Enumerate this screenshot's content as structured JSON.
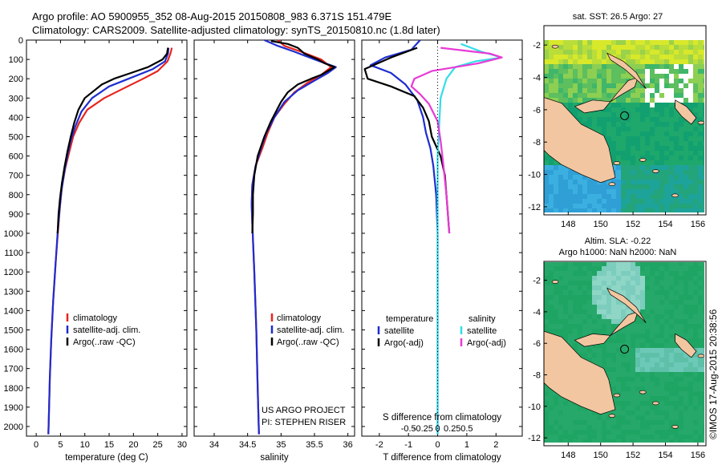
{
  "header": {
    "line1": "Argo profile: AO 5900955_352 08-Aug-2015 20150808_983 6.371S 151.479E",
    "line2": "Climatology: CARS2009. Satellite-adjusted climatology: synTS_20150810.nc (1.8d later)"
  },
  "side_labels": {
    "sst": "sat. SST: 26.5 Argo: 27",
    "sla1": "Altim. SLA: -0.22",
    "sla2": "Argo h1000: NaN h2000: NaN",
    "copyright": "©IMOS 17-Aug-2015 20:38:56"
  },
  "colors": {
    "climatology": "#e8241c",
    "satellite": "#1f2dcf",
    "argo": "#000000",
    "sat_salinity": "#33dde8",
    "argo_salinity": "#e83ad6",
    "land": "#f2c6a0"
  },
  "chart_data": [
    {
      "type": "line",
      "xlabel": "temperature (deg C)",
      "ylabel": "",
      "xlim": [
        -2,
        31
      ],
      "ylim": [
        2050,
        0
      ],
      "xticks": [
        0,
        5,
        10,
        15,
        20,
        25,
        30
      ],
      "yticks": [
        0,
        100,
        200,
        300,
        400,
        500,
        600,
        700,
        800,
        900,
        1000,
        1100,
        1200,
        1300,
        1400,
        1500,
        1600,
        1700,
        1800,
        1900,
        2000
      ],
      "legend": [
        "climatology",
        "satellite-adj. clim.",
        "Argo(..raw -QC)"
      ],
      "series": [
        {
          "name": "climatology",
          "color": "#e8241c",
          "points": [
            [
              27.9,
              40
            ],
            [
              27.6,
              70
            ],
            [
              27.0,
              110
            ],
            [
              25.0,
              160
            ],
            [
              22.0,
              200
            ],
            [
              18.0,
              250
            ],
            [
              14.0,
              300
            ],
            [
              10.5,
              360
            ],
            [
              8.8,
              430
            ],
            [
              7.6,
              500
            ],
            [
              6.8,
              580
            ],
            [
              6.0,
              660
            ],
            [
              5.3,
              760
            ],
            [
              4.9,
              860
            ],
            [
              4.5,
              980
            ],
            [
              4.0,
              1150
            ],
            [
              3.5,
              1350
            ],
            [
              3.1,
              1550
            ],
            [
              2.8,
              1750
            ],
            [
              2.6,
              1950
            ],
            [
              2.5,
              2040
            ]
          ]
        },
        {
          "name": "satellite-adj. clim.",
          "color": "#1f2dcf",
          "points": [
            [
              27.2,
              40
            ],
            [
              27.1,
              70
            ],
            [
              26.5,
              110
            ],
            [
              24.0,
              150
            ],
            [
              20.0,
              190
            ],
            [
              15.0,
              240
            ],
            [
              11.5,
              300
            ],
            [
              9.3,
              370
            ],
            [
              8.0,
              450
            ],
            [
              7.1,
              520
            ],
            [
              6.4,
              600
            ],
            [
              5.8,
              680
            ],
            [
              5.2,
              780
            ],
            [
              4.8,
              880
            ],
            [
              4.4,
              1000
            ],
            [
              4.0,
              1150
            ],
            [
              3.5,
              1350
            ],
            [
              3.1,
              1550
            ],
            [
              2.8,
              1750
            ],
            [
              2.6,
              1950
            ],
            [
              2.5,
              2040
            ]
          ]
        },
        {
          "name": "Argo(..raw -QC)",
          "color": "#000000",
          "points": [
            [
              27.1,
              40
            ],
            [
              26.9,
              70
            ],
            [
              26.0,
              100
            ],
            [
              23.0,
              140
            ],
            [
              19.5,
              170
            ],
            [
              16.0,
              200
            ],
            [
              13.5,
              230
            ],
            [
              12.0,
              260
            ],
            [
              10.0,
              300
            ],
            [
              8.7,
              360
            ],
            [
              7.8,
              430
            ],
            [
              7.1,
              500
            ],
            [
              6.4,
              580
            ],
            [
              5.8,
              660
            ],
            [
              5.3,
              740
            ],
            [
              4.9,
              820
            ],
            [
              4.6,
              900
            ],
            [
              4.4,
              1000
            ]
          ]
        }
      ]
    },
    {
      "type": "line",
      "xlabel": "salinity",
      "ylabel": "",
      "xlim": [
        33.7,
        36.1
      ],
      "ylim": [
        2050,
        0
      ],
      "xticks": [
        34,
        34.5,
        35,
        35.5,
        36
      ],
      "legend": [
        "climatology",
        "satellite-adj. clim.",
        "Argo(..raw -QC)"
      ],
      "annotation": [
        "US ARGO PROJECT",
        "PI: STEPHEN RISER"
      ],
      "series": [
        {
          "name": "climatology",
          "color": "#e8241c",
          "points": [
            [
              34.95,
              0
            ],
            [
              35.05,
              30
            ],
            [
              35.3,
              60
            ],
            [
              35.6,
              100
            ],
            [
              35.75,
              140
            ],
            [
              35.6,
              180
            ],
            [
              35.4,
              220
            ],
            [
              35.2,
              270
            ],
            [
              35.05,
              330
            ],
            [
              34.9,
              400
            ],
            [
              34.8,
              480
            ],
            [
              34.72,
              560
            ],
            [
              34.62,
              650
            ],
            [
              34.57,
              750
            ],
            [
              34.56,
              850
            ],
            [
              34.57,
              950
            ],
            [
              34.6,
              1200
            ],
            [
              34.63,
              1500
            ],
            [
              34.65,
              1800
            ],
            [
              34.67,
              2040
            ]
          ]
        },
        {
          "name": "satellite-adj. clim.",
          "color": "#1f2dcf",
          "points": [
            [
              34.75,
              0
            ],
            [
              34.95,
              30
            ],
            [
              35.2,
              60
            ],
            [
              35.5,
              100
            ],
            [
              35.82,
              140
            ],
            [
              35.7,
              170
            ],
            [
              35.5,
              210
            ],
            [
              35.25,
              260
            ],
            [
              35.05,
              320
            ],
            [
              34.9,
              400
            ],
            [
              34.78,
              480
            ],
            [
              34.7,
              560
            ],
            [
              34.62,
              650
            ],
            [
              34.57,
              750
            ],
            [
              34.56,
              850
            ],
            [
              34.57,
              950
            ],
            [
              34.6,
              1200
            ],
            [
              34.63,
              1500
            ],
            [
              34.65,
              1800
            ],
            [
              34.67,
              2040
            ]
          ]
        },
        {
          "name": "Argo(..raw -QC)",
          "color": "#000000",
          "points": [
            [
              34.85,
              5
            ],
            [
              35.1,
              20
            ],
            [
              35.25,
              40
            ],
            [
              35.35,
              70
            ],
            [
              35.55,
              100
            ],
            [
              35.65,
              120
            ],
            [
              35.8,
              140
            ],
            [
              35.6,
              180
            ],
            [
              35.45,
              200
            ],
            [
              35.25,
              230
            ],
            [
              35.1,
              270
            ],
            [
              35.0,
              320
            ],
            [
              34.85,
              420
            ],
            [
              34.75,
              500
            ],
            [
              34.65,
              600
            ],
            [
              34.6,
              700
            ],
            [
              34.58,
              800
            ],
            [
              34.58,
              900
            ],
            [
              34.57,
              1000
            ]
          ]
        }
      ]
    },
    {
      "type": "line",
      "xlabel": "T difference from climatology",
      "ylabel": "",
      "xlim": [
        -2.6,
        2.9
      ],
      "ylim": [
        2050,
        0
      ],
      "xticks": [
        -2,
        -1,
        0,
        1,
        2
      ],
      "xlabel_top": "S difference from climatology",
      "xticks_top": [
        "-0.5",
        "-0.25",
        "0",
        "0.25",
        "0.5"
      ],
      "legend_titles": [
        "temperature",
        "salinity"
      ],
      "legend": [
        "satellite",
        "Argo(-adj)",
        "satellite",
        "Argo(-adj)"
      ],
      "series": [
        {
          "name": "satellite",
          "group": "temperature",
          "color": "#1f2dcf",
          "points": [
            [
              -0.6,
              0
            ],
            [
              -0.9,
              50
            ],
            [
              -1.8,
              90
            ],
            [
              -2.3,
              130
            ],
            [
              -1.6,
              170
            ],
            [
              -1.1,
              230
            ],
            [
              -0.7,
              310
            ],
            [
              -0.5,
              400
            ],
            [
              -0.4,
              480
            ],
            [
              -0.25,
              560
            ],
            [
              -0.15,
              650
            ],
            [
              -0.05,
              800
            ],
            [
              0,
              1000
            ],
            [
              0,
              1400
            ],
            [
              0,
              2040
            ]
          ]
        },
        {
          "name": "Argo(-adj)",
          "group": "temperature",
          "color": "#000000",
          "points": [
            [
              -0.7,
              40
            ],
            [
              -1.6,
              90
            ],
            [
              -2.5,
              150
            ],
            [
              -2.4,
              200
            ],
            [
              -1.6,
              240
            ],
            [
              -0.8,
              290
            ],
            [
              -0.5,
              350
            ],
            [
              -0.3,
              420
            ],
            [
              -0.2,
              500
            ],
            [
              0.1,
              600
            ],
            [
              0.25,
              700
            ],
            [
              0.3,
              800
            ],
            [
              0.35,
              900
            ],
            [
              0.4,
              1000
            ]
          ]
        },
        {
          "name": "satellite",
          "group": "salinity",
          "color": "#33dde8",
          "points": [
            [
              0.8,
              20
            ],
            [
              1.5,
              60
            ],
            [
              2.2,
              90
            ],
            [
              1.3,
              110
            ],
            [
              0.6,
              140
            ],
            [
              0.3,
              200
            ],
            [
              0.1,
              300
            ],
            [
              0.05,
              450
            ],
            [
              0,
              600
            ],
            [
              0,
              800
            ],
            [
              0,
              1000
            ],
            [
              0,
              1400
            ],
            [
              0,
              2040
            ]
          ]
        },
        {
          "name": "Argo(-adj)",
          "group": "salinity",
          "color": "#e83ad6",
          "points": [
            [
              0.1,
              40
            ],
            [
              1.8,
              70
            ],
            [
              2.2,
              90
            ],
            [
              1.4,
              120
            ],
            [
              -0.2,
              160
            ],
            [
              -0.8,
              200
            ],
            [
              -0.9,
              240
            ],
            [
              -0.6,
              280
            ],
            [
              -0.3,
              330
            ],
            [
              0.0,
              420
            ],
            [
              0.1,
              520
            ],
            [
              0.2,
              650
            ],
            [
              0.3,
              800
            ],
            [
              0.35,
              900
            ],
            [
              0.4,
              1000
            ]
          ]
        }
      ]
    },
    {
      "type": "heatmap",
      "title": "sat. SST: 26.5 Argo: 27",
      "xticks": [
        148,
        150,
        152,
        154,
        156
      ],
      "yticks": [
        -2,
        -4,
        -6,
        -8,
        -10,
        -12
      ],
      "xlim": [
        146.5,
        156.5
      ],
      "ylim": [
        -12.5,
        -0.8
      ],
      "marker": [
        151.479,
        -6.371
      ]
    },
    {
      "type": "heatmap",
      "title": "Altim. SLA: -0.22",
      "xticks": [
        148,
        150,
        152,
        154,
        156
      ],
      "yticks": [
        -2,
        -4,
        -6,
        -8,
        -10,
        -12
      ],
      "xlim": [
        146.5,
        156.5
      ],
      "ylim": [
        -12.5,
        -0.8
      ],
      "marker": [
        151.479,
        -6.371
      ]
    }
  ]
}
